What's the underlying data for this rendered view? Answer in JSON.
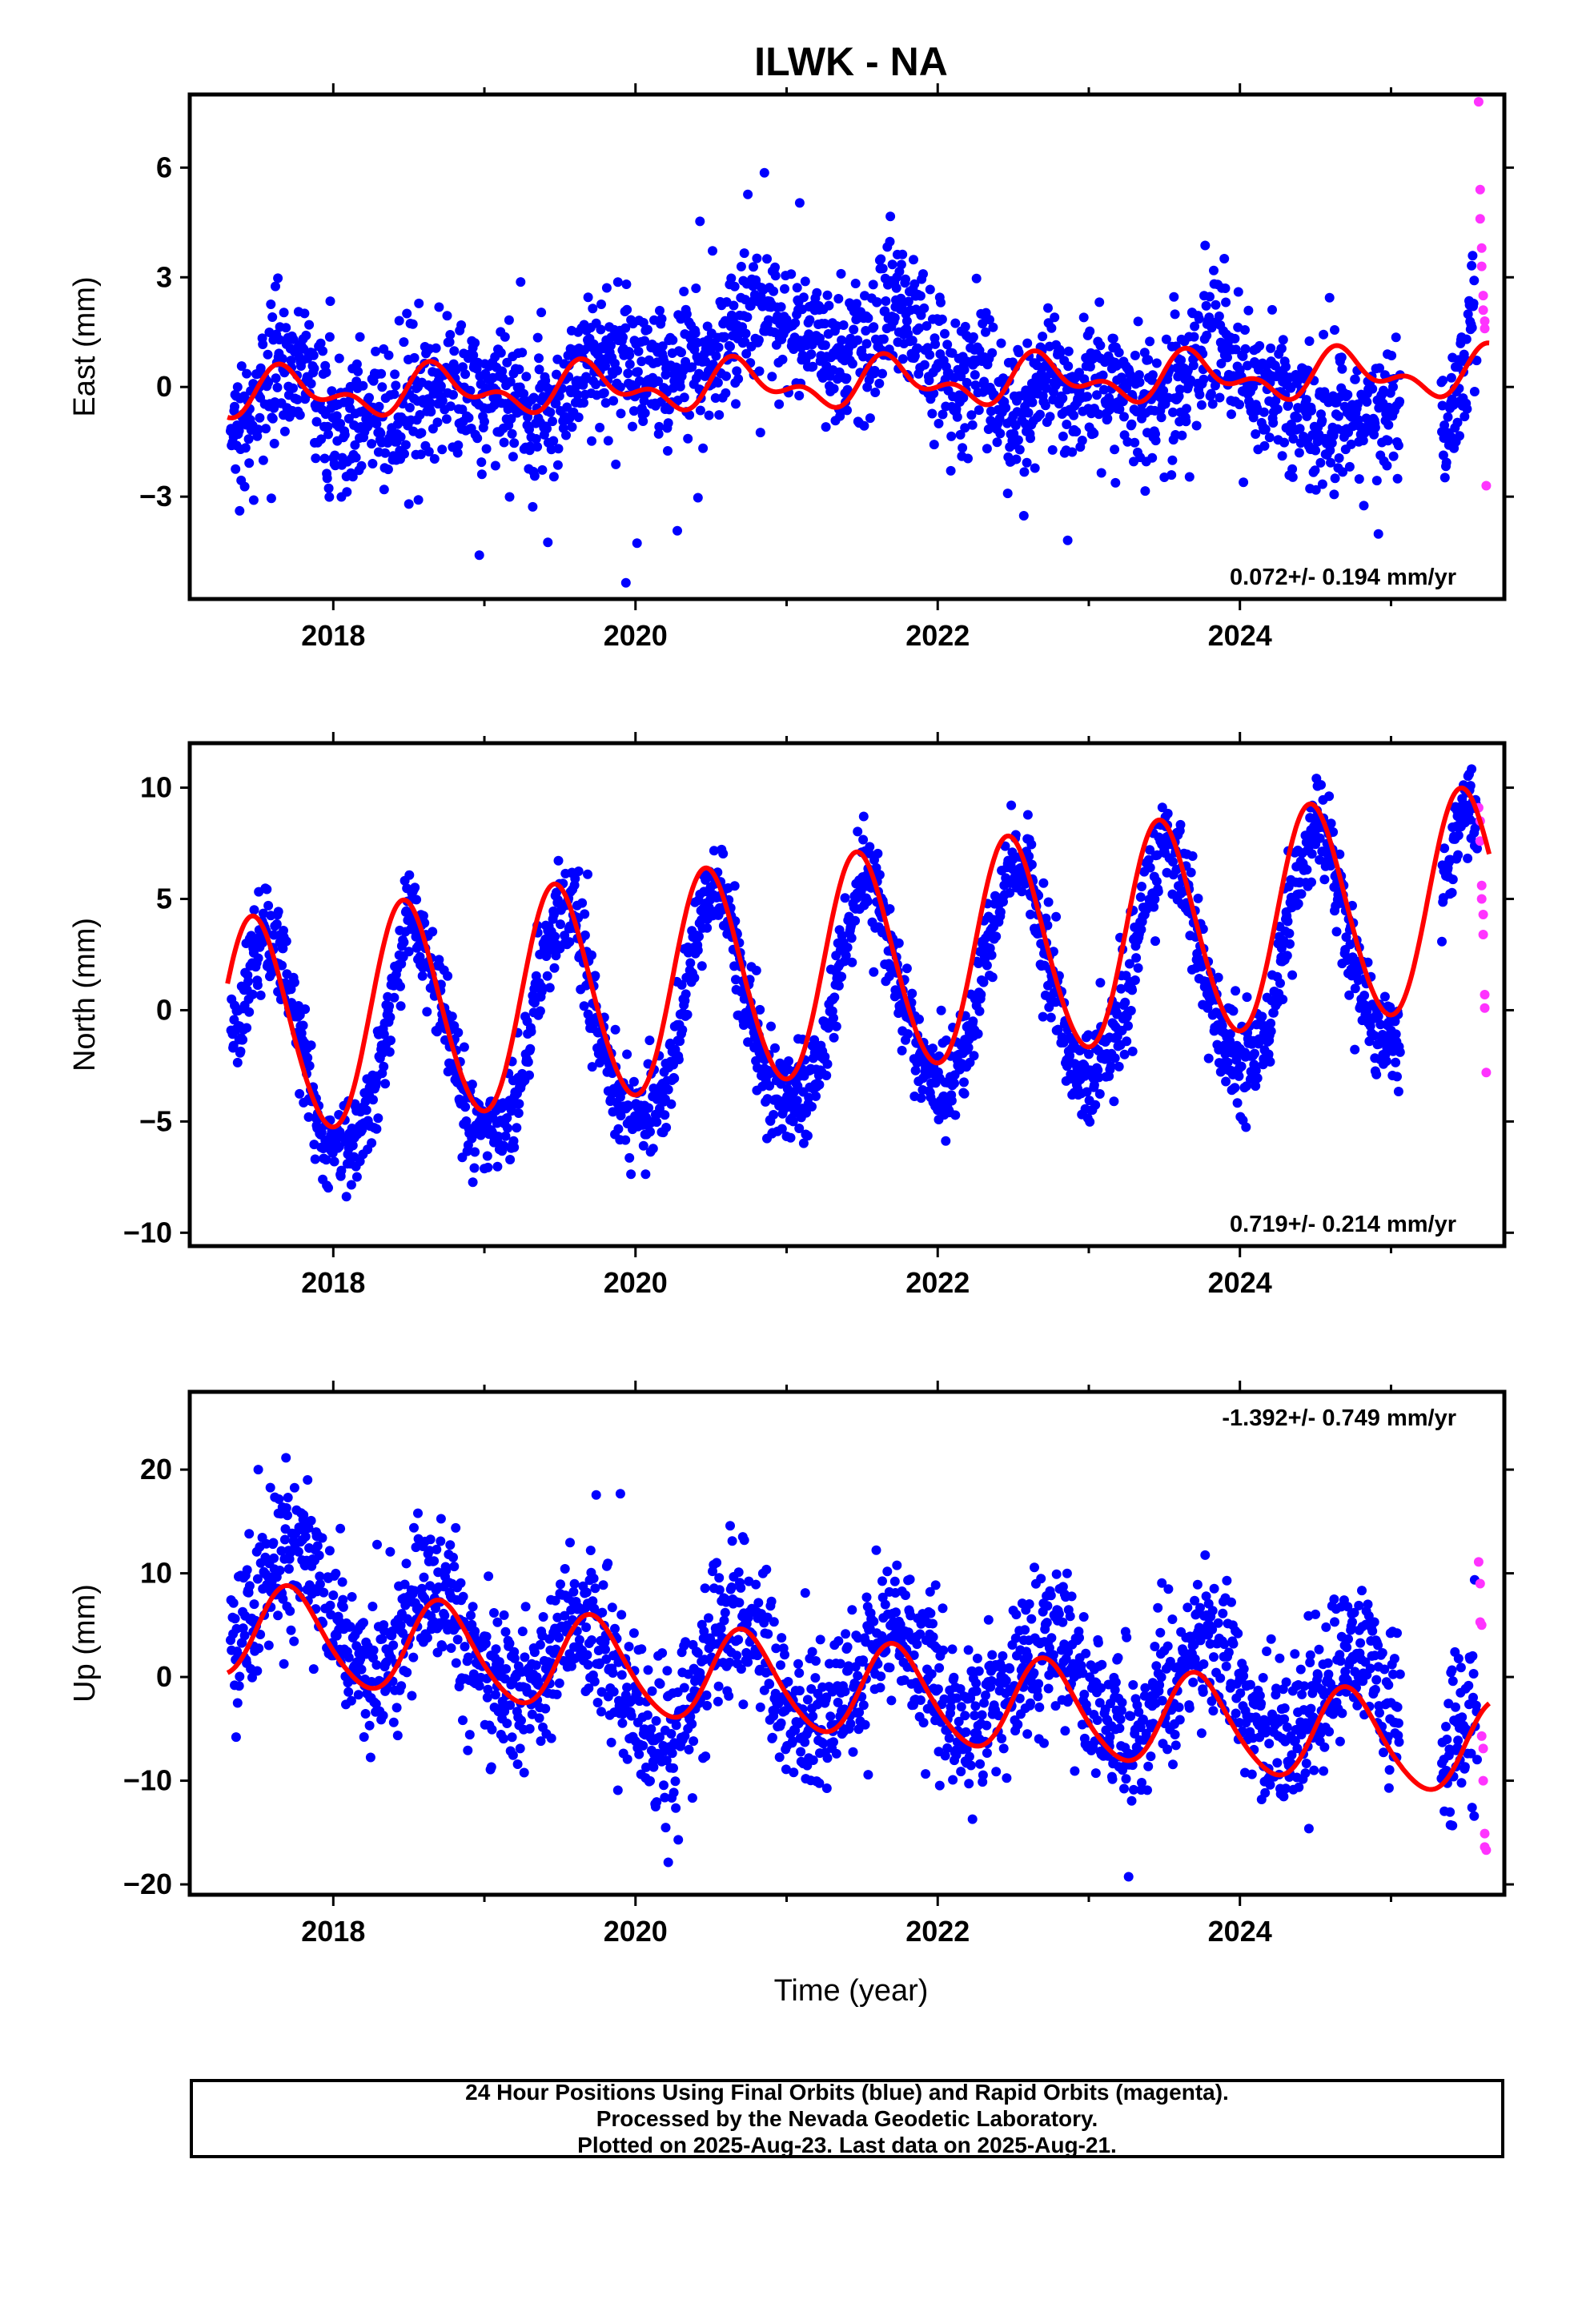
{
  "figure": {
    "title": "ILWK - NA",
    "xlabel": "Time (year)",
    "colors": {
      "final_orbits": "#0000ff",
      "rapid_orbits": "#ff33ff",
      "model_fit": "#ff0000",
      "axes": "#000000"
    }
  },
  "caption": {
    "lines": [
      "24 Hour Positions Using Final Orbits (blue) and Rapid Orbits (magenta).",
      "Processed by the Nevada Geodetic Laboratory.",
      "Plotted on 2025-Aug-23. Last data on 2025-Aug-21."
    ]
  },
  "chart_data": [
    {
      "type": "scatter",
      "ylabel": "East (mm)",
      "xlim": [
        2017.05,
        2025.75
      ],
      "ylim": [
        -5.8,
        8.0
      ],
      "yticks": [
        -3,
        0,
        3,
        6
      ],
      "xticks": [
        2018,
        2020,
        2022,
        2024
      ],
      "rate_label": "0.072+/- 0.194 mm/yr",
      "rate_label_position": "bottom-right",
      "series": [
        {
          "name": "Final Orbits (blue)",
          "style": "dots",
          "x": [
            2017.35,
            2017.5,
            2017.65,
            2017.8,
            2017.95,
            2018.1,
            2018.25,
            2018.4,
            2018.55,
            2018.7,
            2018.85,
            2019.0,
            2019.15,
            2019.3,
            2019.45,
            2019.6,
            2019.75,
            2019.9,
            2020.05,
            2020.2,
            2020.35,
            2020.5,
            2020.65,
            2020.8,
            2020.95,
            2021.1,
            2021.25,
            2021.4,
            2021.55,
            2021.7,
            2021.85,
            2022.0,
            2022.15,
            2022.3,
            2022.45,
            2022.6,
            2022.75,
            2022.9,
            2023.05,
            2023.2,
            2023.35,
            2023.5,
            2023.65,
            2023.8,
            2023.95,
            2024.1,
            2024.25,
            2024.4,
            2024.55,
            2024.7,
            2024.85,
            2025.0,
            2025.35,
            2025.45,
            2025.55
          ],
          "y": [
            -1.2,
            -0.2,
            0.6,
            0.4,
            -0.8,
            -1.0,
            -0.6,
            -0.9,
            -0.4,
            0.1,
            -0.2,
            -0.4,
            -0.1,
            -1.0,
            -0.5,
            0.4,
            1.0,
            0.8,
            0.6,
            0.2,
            0.5,
            0.9,
            1.6,
            2.2,
            1.8,
            1.6,
            1.2,
            0.8,
            1.2,
            2.4,
            1.8,
            0.6,
            0.2,
            0.4,
            -0.6,
            -0.4,
            0.2,
            -0.2,
            0.1,
            0.0,
            -0.6,
            -0.2,
            0.3,
            1.4,
            0.6,
            0.0,
            -0.4,
            -1.0,
            -0.9,
            -0.6,
            -0.8,
            -0.4,
            -1.1,
            0.2,
            1.8
          ]
        },
        {
          "name": "Rapid Orbits (magenta)",
          "style": "dots",
          "x": [
            2025.58,
            2025.59,
            2025.59,
            2025.6,
            2025.6,
            2025.61,
            2025.61,
            2025.62,
            2025.62,
            2025.63
          ],
          "y": [
            7.8,
            5.4,
            4.6,
            3.8,
            3.3,
            2.5,
            2.1,
            1.8,
            1.6,
            -2.7
          ]
        },
        {
          "name": "Model fit (red)",
          "style": "line",
          "rate_mm_per_yr": 0.072,
          "offset": -0.2,
          "annual": {
            "amplitude": 0.5,
            "peak": 2017.7
          },
          "semiannual": {
            "amplitude": 0.35,
            "peak": 2017.62
          },
          "x_range": [
            2017.3,
            2025.65
          ]
        }
      ]
    },
    {
      "type": "scatter",
      "ylabel": "North (mm)",
      "xlim": [
        2017.05,
        2025.75
      ],
      "ylim": [
        -10.6,
        12.0
      ],
      "yticks": [
        -10,
        -5,
        0,
        5,
        10
      ],
      "xticks": [
        2018,
        2020,
        2022,
        2024
      ],
      "rate_label": "0.719+/- 0.214 mm/yr",
      "rate_label_position": "bottom-right",
      "series": [
        {
          "name": "Final Orbits (blue)",
          "style": "dots",
          "x": [
            2017.35,
            2017.5,
            2017.65,
            2017.8,
            2017.95,
            2018.1,
            2018.25,
            2018.4,
            2018.5,
            2018.6,
            2018.75,
            2018.9,
            2019.05,
            2019.2,
            2019.35,
            2019.5,
            2019.6,
            2019.75,
            2019.9,
            2020.05,
            2020.2,
            2020.35,
            2020.5,
            2020.6,
            2020.75,
            2020.9,
            2021.05,
            2021.2,
            2021.35,
            2021.5,
            2021.6,
            2021.75,
            2021.9,
            2022.05,
            2022.2,
            2022.35,
            2022.5,
            2022.6,
            2022.75,
            2022.9,
            2023.05,
            2023.2,
            2023.35,
            2023.5,
            2023.6,
            2023.75,
            2023.9,
            2024.05,
            2024.2,
            2024.35,
            2024.5,
            2024.6,
            2024.75,
            2024.9,
            2025.05,
            2025.35,
            2025.45,
            2025.55
          ],
          "y": [
            -1.5,
            3.2,
            2.8,
            -2.0,
            -6.2,
            -6.0,
            -4.0,
            0.5,
            4.2,
            3.5,
            -1.0,
            -5.0,
            -5.8,
            -4.2,
            0.8,
            5.0,
            4.2,
            -0.5,
            -4.4,
            -5.0,
            -3.8,
            1.5,
            5.6,
            4.8,
            0.0,
            -3.8,
            -4.4,
            -3.0,
            2.0,
            6.2,
            5.4,
            1.0,
            -2.8,
            -3.6,
            -1.6,
            3.2,
            7.1,
            6.0,
            1.5,
            -2.4,
            -2.8,
            -0.8,
            4.0,
            7.6,
            6.8,
            2.2,
            -1.8,
            -2.2,
            -0.4,
            4.8,
            8.4,
            7.4,
            2.4,
            -1.2,
            -1.4,
            6.0,
            8.6,
            9.0
          ]
        },
        {
          "name": "Rapid Orbits (magenta)",
          "style": "dots",
          "x": [
            2025.58,
            2025.59,
            2025.59,
            2025.6,
            2025.6,
            2025.61,
            2025.61,
            2025.62,
            2025.62,
            2025.63
          ],
          "y": [
            9.1,
            8.5,
            7.6,
            5.6,
            5.0,
            4.3,
            3.4,
            0.7,
            0.1,
            -2.8
          ]
        },
        {
          "name": "Model fit (red)",
          "style": "line",
          "rate_mm_per_yr": 0.719,
          "offset": -1.0,
          "annual": {
            "amplitude": 4.9,
            "peak": 2017.48
          },
          "semiannual": {
            "amplitude": 0.35,
            "peak": 2017.4
          },
          "x_range": [
            2017.3,
            2025.65
          ]
        }
      ]
    },
    {
      "type": "scatter",
      "ylabel": "Up (mm)",
      "xlabel": "Time (year)",
      "xlim": [
        2017.05,
        2025.75
      ],
      "ylim": [
        -21.0,
        27.5
      ],
      "yticks": [
        -20,
        -10,
        0,
        10,
        20
      ],
      "xticks": [
        2018,
        2020,
        2022,
        2024
      ],
      "rate_label": "-1.392+/- 0.749 mm/yr",
      "rate_label_position": "top-right",
      "series": [
        {
          "name": "Final Orbits (blue)",
          "style": "dots",
          "x": [
            2017.35,
            2017.5,
            2017.65,
            2017.8,
            2017.95,
            2018.1,
            2018.25,
            2018.4,
            2018.55,
            2018.7,
            2018.85,
            2019.0,
            2019.15,
            2019.3,
            2019.45,
            2019.6,
            2019.75,
            2019.9,
            2020.05,
            2020.2,
            2020.35,
            2020.5,
            2020.65,
            2020.8,
            2020.95,
            2021.1,
            2021.25,
            2021.4,
            2021.55,
            2021.7,
            2021.85,
            2022.0,
            2022.15,
            2022.3,
            2022.45,
            2022.6,
            2022.75,
            2022.9,
            2023.05,
            2023.2,
            2023.35,
            2023.5,
            2023.65,
            2023.8,
            2023.95,
            2024.1,
            2024.25,
            2024.4,
            2024.55,
            2024.7,
            2024.85,
            2025.0,
            2025.35,
            2025.45,
            2025.55
          ],
          "y": [
            2.0,
            7.5,
            11.0,
            12.0,
            6.0,
            1.5,
            0.5,
            2.5,
            6.5,
            8.5,
            5.5,
            0.5,
            -1.0,
            -1.5,
            2.0,
            5.5,
            4.5,
            -0.5,
            -5.5,
            -6.5,
            -3.0,
            3.0,
            5.0,
            3.5,
            -1.0,
            -4.0,
            -4.5,
            -2.0,
            2.5,
            5.5,
            3.0,
            -1.5,
            -4.5,
            -4.0,
            -1.0,
            2.0,
            3.5,
            1.0,
            -3.0,
            -5.0,
            -5.5,
            -1.0,
            2.0,
            3.5,
            0.0,
            -4.0,
            -6.0,
            -5.5,
            -1.5,
            1.5,
            2.0,
            -3.0,
            -9.0,
            -6.5,
            -4.0
          ]
        },
        {
          "name": "Rapid Orbits (magenta)",
          "style": "dots",
          "x": [
            2025.58,
            2025.59,
            2025.59,
            2025.6,
            2025.6,
            2025.61,
            2025.61,
            2025.62,
            2025.62,
            2025.63
          ],
          "y": [
            11.1,
            9.0,
            5.3,
            5.0,
            -5.7,
            -6.9,
            -10.0,
            -15.1,
            -16.4,
            -16.7
          ]
        },
        {
          "name": "Model fit (red)",
          "style": "line",
          "rate_mm_per_yr": -1.392,
          "offset": 4.5,
          "annual": {
            "amplitude": 4.5,
            "peak": 2017.72
          },
          "semiannual": {
            "amplitude": 0.5,
            "peak": 2017.65
          },
          "x_range": [
            2017.3,
            2025.65
          ]
        }
      ]
    }
  ]
}
